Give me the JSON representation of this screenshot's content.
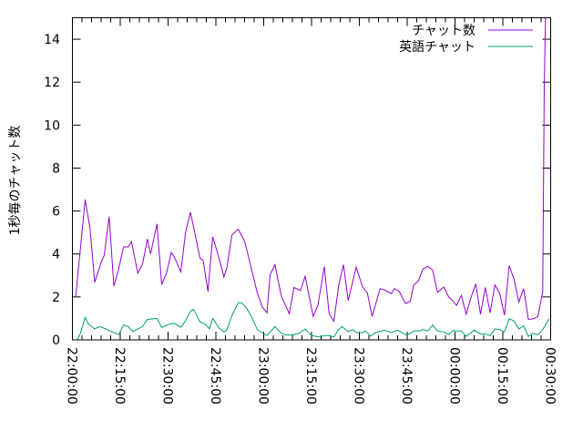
{
  "chart_data": {
    "type": "line",
    "title": "",
    "xlabel": "",
    "ylabel": "1秒毎のチャット数",
    "xlim": [
      "22:00:00",
      "00:30:00"
    ],
    "ylim": [
      0,
      15
    ],
    "xticks": [
      "22:00:00",
      "22:15:00",
      "22:30:00",
      "22:45:00",
      "23:00:00",
      "23:15:00",
      "23:30:00",
      "23:45:00",
      "00:00:00",
      "00:15:00",
      "00:30:00"
    ],
    "yticks": [
      0,
      2,
      4,
      6,
      8,
      10,
      12,
      14
    ],
    "grid": false,
    "legend_position": "top-right",
    "series": [
      {
        "name": "チャット数",
        "color": "#9400d3",
        "points": [
          [
            "22:01:00",
            1.97
          ],
          [
            "22:04:00",
            6.53
          ],
          [
            "22:05:30",
            5.2
          ],
          [
            "22:07:00",
            2.68
          ],
          [
            "22:09:00",
            3.6
          ],
          [
            "22:10:00",
            3.95
          ],
          [
            "22:11:30",
            5.74
          ],
          [
            "22:13:00",
            2.5
          ],
          [
            "22:14:30",
            3.3
          ],
          [
            "22:16:00",
            4.33
          ],
          [
            "22:17:30",
            4.33
          ],
          [
            "22:18:30",
            4.58
          ],
          [
            "22:20:30",
            3.1
          ],
          [
            "22:22:00",
            3.53
          ],
          [
            "22:23:30",
            4.7
          ],
          [
            "22:24:30",
            4.0
          ],
          [
            "22:26:30",
            5.4
          ],
          [
            "22:28:00",
            2.58
          ],
          [
            "22:29:30",
            3.1
          ],
          [
            "22:31:00",
            4.07
          ],
          [
            "22:32:00",
            3.84
          ],
          [
            "22:34:00",
            3.17
          ],
          [
            "22:35:30",
            5.02
          ],
          [
            "22:37:00",
            5.94
          ],
          [
            "22:38:00",
            5.26
          ],
          [
            "22:40:00",
            3.81
          ],
          [
            "22:41:00",
            3.7
          ],
          [
            "22:42:30",
            2.25
          ],
          [
            "22:44:00",
            4.8
          ],
          [
            "22:46:00",
            3.81
          ],
          [
            "22:47:30",
            2.93
          ],
          [
            "22:48:30",
            3.39
          ],
          [
            "22:50:00",
            4.87
          ],
          [
            "22:52:00",
            5.16
          ],
          [
            "22:54:00",
            4.59
          ],
          [
            "22:55:30",
            3.7
          ],
          [
            "22:58:00",
            2.18
          ],
          [
            "22:59:30",
            1.54
          ],
          [
            "23:01:00",
            1.26
          ],
          [
            "23:02:00",
            3.03
          ],
          [
            "23:03:30",
            3.5
          ],
          [
            "23:05:30",
            2.04
          ],
          [
            "23:08:00",
            1.22
          ],
          [
            "23:09:30",
            2.44
          ],
          [
            "23:11:30",
            2.3
          ],
          [
            "23:13:00",
            2.96
          ],
          [
            "23:15:30",
            1.09
          ],
          [
            "23:17:00",
            1.61
          ],
          [
            "23:19:00",
            3.41
          ],
          [
            "23:20:30",
            1.23
          ],
          [
            "23:22:00",
            0.86
          ],
          [
            "23:23:30",
            2.54
          ],
          [
            "23:25:00",
            3.5
          ],
          [
            "23:26:30",
            1.83
          ],
          [
            "23:29:00",
            3.39
          ],
          [
            "23:31:00",
            2.46
          ],
          [
            "23:32:30",
            2.18
          ],
          [
            "23:34:00",
            1.09
          ],
          [
            "23:36:30",
            2.39
          ],
          [
            "23:38:00",
            2.32
          ],
          [
            "23:40:00",
            2.15
          ],
          [
            "23:41:00",
            2.39
          ],
          [
            "23:42:30",
            2.25
          ],
          [
            "23:44:30",
            1.69
          ],
          [
            "23:46:00",
            1.8
          ],
          [
            "23:47:00",
            2.54
          ],
          [
            "23:48:30",
            2.75
          ],
          [
            "23:50:00",
            3.31
          ],
          [
            "23:51:30",
            3.43
          ],
          [
            "23:53:00",
            3.24
          ],
          [
            "23:54:30",
            2.21
          ],
          [
            "23:56:30",
            2.46
          ],
          [
            "23:58:00",
            2.0
          ],
          [
            "23:59:00",
            1.86
          ],
          [
            "00:00:30",
            1.61
          ],
          [
            "00:02:00",
            2.07
          ],
          [
            "00:03:30",
            1.19
          ],
          [
            "00:05:00",
            1.97
          ],
          [
            "00:06:30",
            2.61
          ],
          [
            "00:08:00",
            1.19
          ],
          [
            "00:09:30",
            2.44
          ],
          [
            "00:11:00",
            1.26
          ],
          [
            "00:12:30",
            2.56
          ],
          [
            "00:14:00",
            2.18
          ],
          [
            "00:15:30",
            1.15
          ],
          [
            "00:17:00",
            3.46
          ],
          [
            "00:18:30",
            2.82
          ],
          [
            "00:20:00",
            1.76
          ],
          [
            "00:21:30",
            2.39
          ],
          [
            "00:23:00",
            0.95
          ],
          [
            "00:24:30",
            0.98
          ],
          [
            "00:26:00",
            1.08
          ],
          [
            "00:27:30",
            2.25
          ],
          [
            "00:28:00",
            12.0
          ],
          [
            "00:28:30",
            16.0
          ]
        ]
      },
      {
        "name": "英語チャット",
        "color": "#009e73",
        "points": [
          [
            "22:01:30",
            0
          ],
          [
            "22:02:30",
            0.3
          ],
          [
            "22:04:00",
            1.05
          ],
          [
            "22:05:00",
            0.74
          ],
          [
            "22:07:00",
            0.51
          ],
          [
            "22:08:30",
            0.62
          ],
          [
            "22:10:30",
            0.51
          ],
          [
            "22:12:30",
            0.37
          ],
          [
            "22:14:30",
            0.24
          ],
          [
            "22:16:00",
            0.69
          ],
          [
            "22:17:30",
            0.62
          ],
          [
            "22:19:00",
            0.38
          ],
          [
            "22:20:30",
            0.51
          ],
          [
            "22:22:00",
            0.62
          ],
          [
            "22:23:30",
            0.95
          ],
          [
            "22:26:30",
            1.0
          ],
          [
            "22:28:00",
            0.58
          ],
          [
            "22:30:30",
            0.74
          ],
          [
            "22:32:00",
            0.77
          ],
          [
            "22:34:00",
            0.58
          ],
          [
            "22:35:30",
            0.91
          ],
          [
            "22:37:00",
            1.33
          ],
          [
            "22:38:00",
            1.43
          ],
          [
            "22:40:00",
            0.84
          ],
          [
            "22:41:30",
            0.74
          ],
          [
            "22:43:00",
            0.52
          ],
          [
            "22:44:00",
            1.0
          ],
          [
            "22:46:00",
            0.55
          ],
          [
            "22:47:30",
            0.37
          ],
          [
            "22:48:30",
            0.48
          ],
          [
            "22:50:00",
            1.12
          ],
          [
            "22:52:00",
            1.73
          ],
          [
            "22:53:00",
            1.73
          ],
          [
            "22:54:30",
            1.5
          ],
          [
            "22:56:00",
            1.12
          ],
          [
            "22:58:00",
            0.48
          ],
          [
            "22:59:30",
            0.34
          ],
          [
            "23:01:00",
            0.2
          ],
          [
            "23:03:30",
            0.62
          ],
          [
            "23:05:30",
            0.31
          ],
          [
            "23:07:00",
            0.23
          ],
          [
            "23:09:00",
            0.23
          ],
          [
            "23:11:00",
            0.3
          ],
          [
            "23:13:00",
            0.51
          ],
          [
            "23:15:00",
            0.2
          ],
          [
            "23:17:30",
            0.13
          ],
          [
            "23:19:00",
            0.2
          ],
          [
            "23:20:30",
            0.2
          ],
          [
            "23:22:00",
            0.13
          ],
          [
            "23:23:30",
            0.48
          ],
          [
            "23:24:30",
            0.62
          ],
          [
            "23:26:30",
            0.38
          ],
          [
            "23:28:00",
            0.48
          ],
          [
            "23:29:00",
            0.34
          ],
          [
            "23:31:00",
            0.34
          ],
          [
            "23:32:00",
            0.41
          ],
          [
            "23:33:30",
            0.17
          ],
          [
            "23:35:00",
            0.34
          ],
          [
            "23:38:00",
            0.45
          ],
          [
            "23:40:00",
            0.34
          ],
          [
            "23:42:00",
            0.45
          ],
          [
            "23:44:30",
            0.24
          ],
          [
            "23:46:00",
            0.3
          ],
          [
            "23:47:00",
            0.41
          ],
          [
            "23:48:30",
            0.41
          ],
          [
            "23:50:00",
            0.48
          ],
          [
            "23:51:30",
            0.41
          ],
          [
            "23:53:00",
            0.69
          ],
          [
            "23:54:30",
            0.41
          ],
          [
            "23:56:30",
            0.37
          ],
          [
            "23:58:00",
            0.24
          ],
          [
            "23:59:30",
            0.45
          ],
          [
            "00:00:30",
            0.41
          ],
          [
            "00:02:00",
            0.41
          ],
          [
            "00:03:30",
            0.16
          ],
          [
            "00:06:00",
            0.45
          ],
          [
            "00:08:00",
            0.27
          ],
          [
            "00:09:30",
            0.27
          ],
          [
            "00:11:00",
            0.2
          ],
          [
            "00:12:30",
            0.51
          ],
          [
            "00:14:00",
            0.48
          ],
          [
            "00:15:30",
            0.37
          ],
          [
            "00:17:00",
            0.98
          ],
          [
            "00:18:30",
            0.88
          ],
          [
            "00:20:00",
            0.51
          ],
          [
            "00:21:30",
            0.65
          ],
          [
            "00:23:00",
            0.16
          ],
          [
            "00:24:30",
            0.31
          ],
          [
            "00:26:00",
            0.23
          ],
          [
            "00:27:30",
            0.48
          ],
          [
            "00:29:30",
            0.98
          ]
        ]
      }
    ]
  }
}
